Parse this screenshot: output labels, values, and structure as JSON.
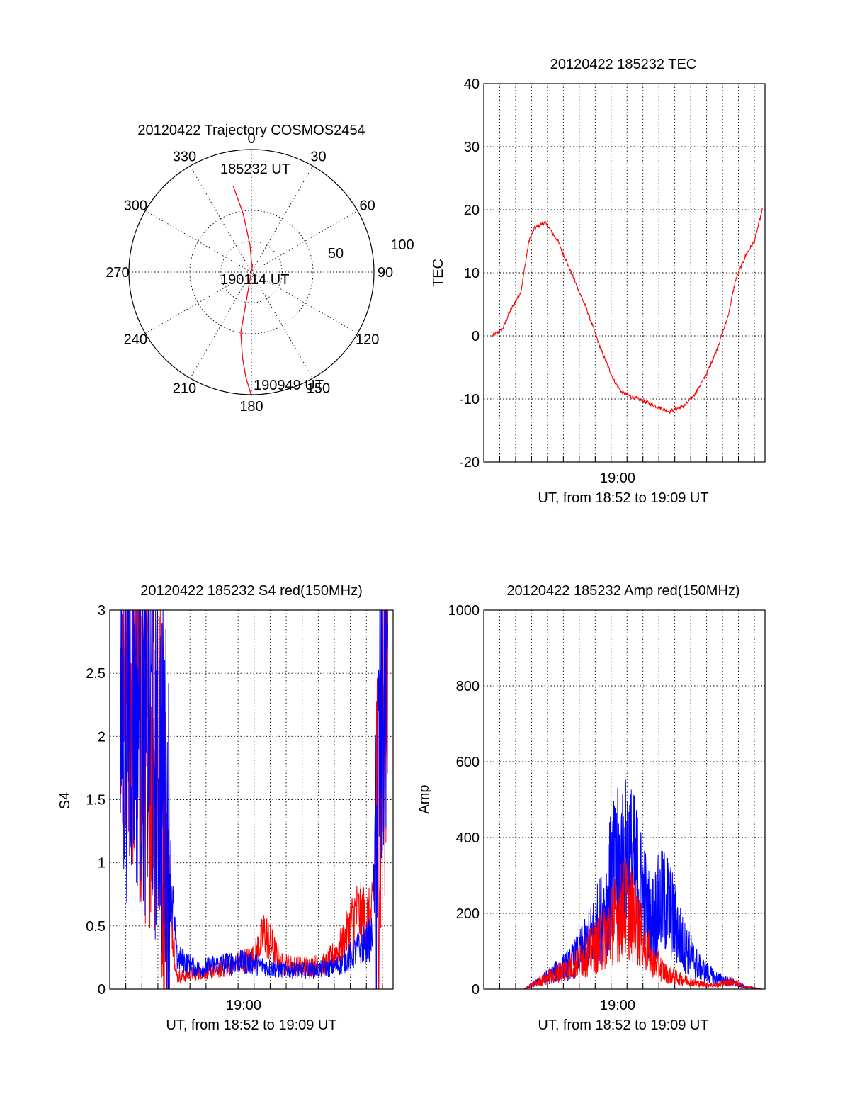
{
  "panels": {
    "trajectory": {
      "title": "20120422 Trajectory COSMOS2454",
      "azimuth_labels": [
        "0",
        "30",
        "60",
        "90",
        "120",
        "150",
        "180",
        "210",
        "240",
        "270",
        "300",
        "330"
      ],
      "ring_labels": [
        "50",
        "100"
      ],
      "annotations": {
        "start": "185232 UT",
        "middle": "190114 UT",
        "end": "190949 UT"
      }
    },
    "tec": {
      "title": "20120422 185232 TEC",
      "ylabel": "TEC",
      "xtick": "19:00",
      "xlabel": "UT, from 18:52 to 19:09 UT",
      "yticks": [
        "-20",
        "-10",
        "0",
        "10",
        "20",
        "30",
        "40"
      ]
    },
    "s4": {
      "title": "20120422 185232 S4 red(150MHz)",
      "ylabel": "S4",
      "xtick": "19:00",
      "xlabel": "UT, from 18:52 to 19:09 UT",
      "yticks": [
        "0",
        "0.5",
        "1",
        "1.5",
        "2",
        "2.5",
        "3"
      ]
    },
    "amp": {
      "title": "20120422 185232 Amp red(150MHz)",
      "ylabel": "Amp",
      "xtick": "19:00",
      "xlabel": "UT, from 18:52 to 19:09 UT",
      "yticks": [
        "0",
        "200",
        "400",
        "600",
        "800",
        "1000"
      ]
    }
  },
  "colors": {
    "red": "#ff0000",
    "blue": "#0000ff",
    "axis": "#000000"
  },
  "chart_data": [
    {
      "type": "scatter",
      "title": "20120422 Trajectory COSMOS2454",
      "polar": true,
      "azimuth_deg": [
        348,
        352,
        357,
        2,
        9,
        190,
        186,
        183,
        180
      ],
      "radius": [
        72,
        48,
        22,
        6,
        6,
        50,
        70,
        86,
        101
      ],
      "rlim": [
        0,
        100
      ],
      "grid": true
    },
    {
      "type": "line",
      "title": "20120422 185232 TEC",
      "xlabel": "UT, from 18:52 to 19:09 UT",
      "ylabel": "TEC",
      "ylim": [
        -20,
        40
      ],
      "x": [
        "18:52:32",
        "18:53:10",
        "18:53:40",
        "18:54:20",
        "18:54:50",
        "18:55:10",
        "18:55:50",
        "18:56:40",
        "18:57:30",
        "18:58:30",
        "18:59:20",
        "19:00:10",
        "19:00:40",
        "19:01:40",
        "19:02:40",
        "19:03:40",
        "19:04:40",
        "19:05:20",
        "19:06:00",
        "19:06:40",
        "19:07:20",
        "19:07:50",
        "19:08:30",
        "19:09:00",
        "19:09:30"
      ],
      "series": [
        {
          "values": [
            0,
            1,
            4,
            7,
            15,
            17,
            18,
            15,
            10,
            4,
            -2,
            -7,
            -9,
            -10,
            -11,
            -12,
            -11,
            -9,
            -6,
            -2,
            3,
            9,
            13,
            15,
            20
          ]
        }
      ]
    },
    {
      "type": "line",
      "title": "20120422 185232 S4 red(150MHz)",
      "xlabel": "UT, from 18:52 to 19:09 UT",
      "ylabel": "S4",
      "ylim": [
        0,
        3
      ],
      "x": [
        "18:52:40",
        "18:53:20",
        "18:54:00",
        "18:54:40",
        "18:55:20",
        "18:55:40",
        "18:56:10",
        "18:57:30",
        "18:59:00",
        "18:59:50",
        "19:01:00",
        "19:01:40",
        "19:02:40",
        "19:04:00",
        "19:05:30",
        "19:06:30",
        "19:07:20",
        "19:08:20",
        "19:08:50",
        "19:09:20"
      ],
      "series": [
        {
          "values": [
            2.2,
            2.5,
            2.0,
            2.1,
            1.5,
            0.9,
            0.1,
            0.13,
            0.16,
            0.2,
            0.25,
            0.45,
            0.2,
            0.18,
            0.2,
            0.35,
            0.6,
            0.55,
            1.5,
            2.8
          ]
        },
        {
          "values": [
            2.1,
            2.4,
            2.2,
            2.0,
            1.7,
            1.1,
            0.25,
            0.16,
            0.2,
            0.22,
            0.2,
            0.18,
            0.15,
            0.15,
            0.16,
            0.2,
            0.3,
            0.4,
            1.8,
            2.9
          ]
        }
      ]
    },
    {
      "type": "line",
      "title": "20120422 185232 Amp red(150MHz)",
      "xlabel": "UT, from 18:52 to 19:09 UT",
      "ylabel": "Amp",
      "ylim": [
        0,
        1000
      ],
      "x": [
        "18:52:40",
        "18:54:30",
        "18:55:30",
        "18:56:30",
        "18:57:30",
        "18:58:30",
        "18:59:30",
        "19:00:00",
        "19:00:30",
        "19:01:00",
        "19:01:30",
        "19:02:00",
        "19:02:30",
        "19:03:00",
        "19:03:30",
        "19:04:30",
        "19:05:30",
        "19:06:30",
        "19:07:30",
        "19:08:30",
        "19:09:30"
      ],
      "series": [
        {
          "values": [
            0,
            0,
            20,
            40,
            60,
            90,
            130,
            170,
            200,
            220,
            180,
            130,
            80,
            60,
            40,
            25,
            15,
            10,
            20,
            5,
            0
          ]
        },
        {
          "values": [
            0,
            0,
            20,
            45,
            70,
            120,
            200,
            290,
            330,
            360,
            310,
            250,
            180,
            220,
            230,
            120,
            60,
            30,
            20,
            5,
            0
          ]
        }
      ]
    }
  ]
}
